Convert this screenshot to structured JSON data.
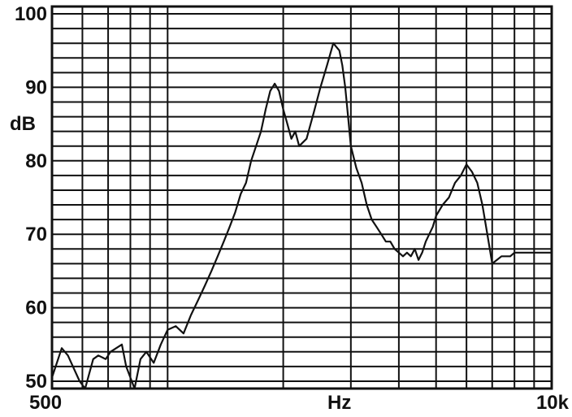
{
  "chart_data": {
    "type": "line",
    "title": "",
    "xlabel": "Hz",
    "ylabel": "dB",
    "x_scale": "log",
    "xlim": [
      500,
      10000
    ],
    "ylim": [
      49,
      101
    ],
    "x_tick_labels": [
      {
        "value": 500,
        "label": "500"
      },
      {
        "value": 2800,
        "label": "Hz"
      },
      {
        "value": 10000,
        "label": "10k"
      }
    ],
    "y_tick_labels": [
      {
        "value": 100,
        "label": "100"
      },
      {
        "value": 90,
        "label": "90"
      },
      {
        "value": 80,
        "label": "80"
      },
      {
        "value": 70,
        "label": "70"
      },
      {
        "value": 60,
        "label": "60"
      },
      {
        "value": 50,
        "label": "50"
      }
    ],
    "grid": true,
    "series": [
      {
        "x": [
          500,
          530,
          550,
          590,
          610,
          640,
          660,
          690,
          710,
          760,
          780,
          820,
          850,
          880,
          920,
          960,
          1000,
          1050,
          1100,
          1150,
          1200,
          1250,
          1300,
          1350,
          1400,
          1450,
          1500,
          1550,
          1600,
          1650,
          1700,
          1750,
          1800,
          1850,
          1900,
          1950,
          2000,
          2050,
          2100,
          2150,
          2200,
          2300,
          2400,
          2500,
          2600,
          2700,
          2800,
          2850,
          2900,
          2950,
          3000,
          3100,
          3200,
          3300,
          3400,
          3500,
          3600,
          3700,
          3800,
          3900,
          4000,
          4100,
          4200,
          4300,
          4400,
          4500,
          4600,
          4700,
          4800,
          4900,
          5000,
          5200,
          5400,
          5600,
          5800,
          6000,
          6200,
          6400,
          6600,
          6800,
          7000,
          7200,
          7400,
          7600,
          7800,
          8000,
          8300,
          8600,
          9000,
          9400,
          10000
        ],
        "y": [
          50.5,
          54.5,
          53.5,
          50,
          49,
          53,
          53.5,
          53,
          54,
          55,
          52,
          49,
          53,
          54,
          52.5,
          55,
          57,
          57.5,
          56.5,
          59,
          61,
          63,
          65,
          67,
          69,
          71,
          73,
          75.5,
          77,
          80,
          82,
          84,
          87,
          89.5,
          90.5,
          89.5,
          87,
          85,
          83,
          84,
          82,
          83,
          86.5,
          90,
          93,
          96,
          95,
          93,
          90,
          86,
          82,
          79,
          77,
          74,
          72,
          71,
          70,
          69,
          69,
          68,
          67.5,
          67,
          67.5,
          67,
          68,
          66.5,
          67.5,
          69,
          70,
          71,
          72.5,
          74,
          75,
          77,
          78,
          79.5,
          78.5,
          77,
          74,
          70,
          66,
          66.5,
          67,
          67,
          67,
          67.5,
          67.5,
          67.5,
          67.5,
          67.5,
          67.5
        ]
      }
    ]
  }
}
